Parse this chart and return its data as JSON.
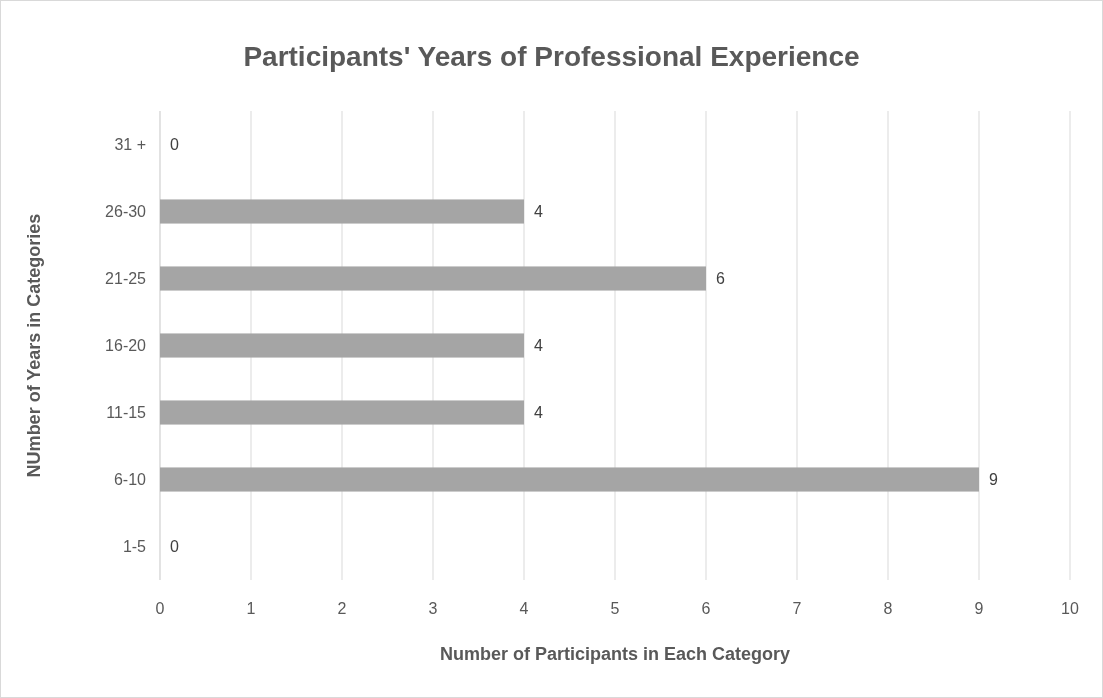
{
  "chart_data": {
    "type": "bar",
    "orientation": "horizontal",
    "title": "Participants' Years of Professional Experience",
    "xlabel": "Number of Participants in Each Category",
    "ylabel": "NUmber of Years in Categories",
    "categories": [
      "31 +",
      "26-30",
      "21-25",
      "16-20",
      "11-15",
      "6-10",
      "1-5"
    ],
    "values": [
      0,
      4,
      6,
      4,
      4,
      9,
      0
    ],
    "color": "#a5a5a5",
    "xlim": [
      0,
      10
    ],
    "xticks": [
      0,
      1,
      2,
      3,
      4,
      5,
      6,
      7,
      8,
      9,
      10
    ],
    "grid": "x",
    "data_labels": true
  }
}
